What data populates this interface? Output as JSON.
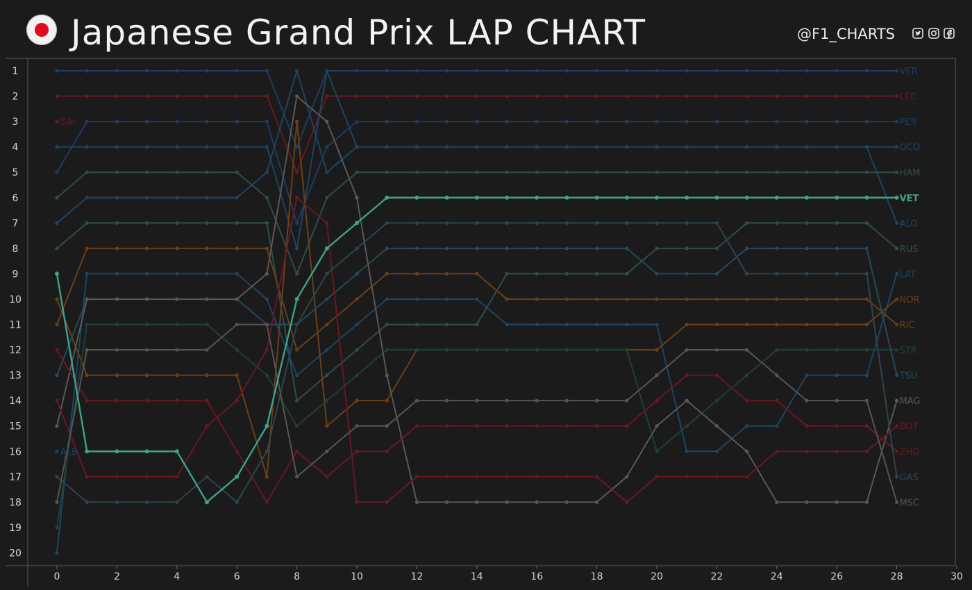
{
  "header": {
    "title": "Japanese Grand Prix LAP CHART",
    "handle": "@F1_CHARTS",
    "flag_icon": "japan-flag-icon",
    "social_icons": [
      "twitter-icon",
      "instagram-icon",
      "facebook-icon"
    ]
  },
  "chart_data": {
    "type": "line",
    "title": "Japanese Grand Prix LAP CHART",
    "xlabel": "",
    "ylabel": "",
    "xlim": [
      -1,
      30
    ],
    "ylim": [
      20.5,
      0.5
    ],
    "y_inverted": true,
    "grid": false,
    "x_ticks": [
      0,
      2,
      4,
      6,
      8,
      10,
      12,
      14,
      16,
      18,
      20,
      22,
      24,
      26,
      28,
      30
    ],
    "y_ticks": [
      1,
      2,
      3,
      4,
      5,
      6,
      7,
      8,
      9,
      10,
      11,
      12,
      13,
      14,
      15,
      16,
      17,
      18,
      19,
      20
    ],
    "highlight": "VET",
    "x": [
      0,
      1,
      2,
      3,
      4,
      5,
      6,
      7,
      8,
      9,
      10,
      11,
      12,
      13,
      14,
      15,
      16,
      17,
      18,
      19,
      20,
      21,
      22,
      23,
      24,
      25,
      26,
      27,
      28
    ],
    "series": [
      {
        "name": "VER",
        "color": "#1e3b63",
        "positions": [
          1,
          1,
          1,
          1,
          1,
          1,
          1,
          1,
          4,
          1,
          1,
          1,
          1,
          1,
          1,
          1,
          1,
          1,
          1,
          1,
          1,
          1,
          1,
          1,
          1,
          1,
          1,
          1,
          1
        ]
      },
      {
        "name": "LEC",
        "color": "#6a1722",
        "positions": [
          2,
          2,
          2,
          2,
          2,
          2,
          2,
          2,
          5,
          2,
          2,
          2,
          2,
          2,
          2,
          2,
          2,
          2,
          2,
          2,
          2,
          2,
          2,
          2,
          2,
          2,
          2,
          2,
          2
        ]
      },
      {
        "name": "SAI",
        "color": "#6a1722",
        "positions": [
          3
        ],
        "end_label": false,
        "start_label": true
      },
      {
        "name": "PER",
        "color": "#1e3b63",
        "positions": [
          5,
          3,
          3,
          3,
          3,
          3,
          3,
          3,
          7,
          4,
          3,
          3,
          3,
          3,
          3,
          3,
          3,
          3,
          3,
          3,
          3,
          3,
          3,
          3,
          3,
          3,
          3,
          3,
          3
        ]
      },
      {
        "name": "OCO",
        "color": "#1d4563",
        "positions": [
          4,
          4,
          4,
          4,
          4,
          4,
          4,
          4,
          8,
          1,
          4,
          4,
          4,
          4,
          4,
          4,
          4,
          4,
          4,
          4,
          4,
          4,
          4,
          4,
          4,
          4,
          4,
          4,
          4
        ]
      },
      {
        "name": "HAM",
        "color": "#2e4e4b",
        "positions": [
          6,
          5,
          5,
          5,
          5,
          5,
          5,
          6,
          9,
          6,
          5,
          5,
          5,
          5,
          5,
          5,
          5,
          5,
          5,
          5,
          5,
          5,
          5,
          5,
          5,
          5,
          5,
          5,
          5
        ]
      },
      {
        "name": "VET",
        "color": "#3fa288",
        "positions": [
          9,
          16,
          16,
          16,
          16,
          18,
          17,
          15,
          10,
          8,
          7,
          6,
          6,
          6,
          6,
          6,
          6,
          6,
          6,
          6,
          6,
          6,
          6,
          6,
          6,
          6,
          6,
          6,
          6
        ]
      },
      {
        "name": "ALO",
        "color": "#1d4563",
        "positions": [
          7,
          6,
          6,
          6,
          6,
          6,
          6,
          5,
          1,
          5,
          4,
          4,
          4,
          4,
          4,
          4,
          4,
          4,
          4,
          4,
          4,
          4,
          4,
          4,
          4,
          4,
          4,
          4,
          7
        ]
      },
      {
        "name": "RUS",
        "color": "#2e4e4b",
        "positions": [
          8,
          7,
          7,
          7,
          7,
          7,
          7,
          7,
          14,
          13,
          12,
          11,
          11,
          11,
          11,
          9,
          9,
          9,
          9,
          9,
          8,
          8,
          8,
          7,
          7,
          7,
          7,
          7,
          8
        ]
      },
      {
        "name": "LAT",
        "color": "#1d4563",
        "positions": [
          20,
          9,
          9,
          9,
          9,
          9,
          9,
          10,
          13,
          12,
          11,
          10,
          10,
          10,
          10,
          11,
          11,
          11,
          11,
          11,
          11,
          16,
          16,
          15,
          15,
          13,
          13,
          13,
          9
        ]
      },
      {
        "name": "NOR",
        "color": "#6b3f16",
        "positions": [
          10,
          13,
          13,
          13,
          13,
          13,
          13,
          17,
          3,
          15,
          14,
          14,
          12,
          12,
          12,
          12,
          12,
          12,
          12,
          12,
          12,
          11,
          11,
          11,
          11,
          11,
          11,
          11,
          10
        ]
      },
      {
        "name": "RIC",
        "color": "#6b3f16",
        "positions": [
          11,
          8,
          8,
          8,
          8,
          8,
          8,
          8,
          12,
          11,
          10,
          9,
          9,
          9,
          9,
          10,
          10,
          10,
          10,
          10,
          10,
          10,
          10,
          10,
          10,
          10,
          10,
          10,
          11
        ]
      },
      {
        "name": "STR",
        "color": "#1f4035",
        "positions": [
          19,
          11,
          11,
          11,
          11,
          11,
          12,
          13,
          15,
          14,
          13,
          12,
          12,
          12,
          12,
          12,
          12,
          12,
          12,
          12,
          16,
          15,
          14,
          13,
          12,
          12,
          12,
          12,
          12
        ]
      },
      {
        "name": "TSU",
        "color": "#244a5a",
        "positions": [
          13,
          10,
          10,
          10,
          10,
          10,
          10,
          11,
          11,
          10,
          9,
          8,
          8,
          8,
          8,
          8,
          8,
          8,
          8,
          8,
          9,
          9,
          9,
          8,
          8,
          8,
          8,
          8,
          13
        ]
      },
      {
        "name": "MAG",
        "color": "#585858",
        "positions": [
          15,
          10,
          10,
          10,
          10,
          10,
          10,
          9,
          2,
          3,
          6,
          13,
          18,
          18,
          18,
          18,
          18,
          18,
          18,
          17,
          15,
          14,
          15,
          16,
          18,
          18,
          18,
          18,
          14
        ]
      },
      {
        "name": "BOT",
        "color": "#6a1722",
        "positions": [
          14,
          17,
          17,
          17,
          17,
          15,
          14,
          12,
          6,
          7,
          18,
          18,
          17,
          17,
          17,
          17,
          17,
          17,
          17,
          18,
          17,
          17,
          17,
          17,
          16,
          16,
          16,
          16,
          15
        ]
      },
      {
        "name": "ZHO",
        "color": "#6a1722",
        "positions": [
          12,
          14,
          14,
          14,
          14,
          14,
          16,
          18,
          16,
          17,
          16,
          16,
          15,
          15,
          15,
          15,
          15,
          15,
          15,
          15,
          14,
          13,
          13,
          14,
          14,
          15,
          15,
          15,
          16
        ]
      },
      {
        "name": "GAS",
        "color": "#2c4550",
        "positions": [
          17,
          18,
          18,
          18,
          18,
          17,
          18,
          16,
          11,
          9,
          8,
          7,
          7,
          7,
          7,
          7,
          7,
          7,
          7,
          7,
          7,
          7,
          7,
          9,
          9,
          9,
          9,
          9,
          17
        ]
      },
      {
        "name": "MSC",
        "color": "#555555",
        "positions": [
          18,
          12,
          12,
          12,
          12,
          12,
          11,
          11,
          17,
          16,
          15,
          15,
          14,
          14,
          14,
          14,
          14,
          14,
          14,
          14,
          13,
          12,
          12,
          12,
          13,
          14,
          14,
          14,
          18
        ]
      },
      {
        "name": "ALB",
        "color": "#1d4563",
        "positions": [
          16
        ],
        "end_label": false,
        "start_label": true
      }
    ]
  }
}
